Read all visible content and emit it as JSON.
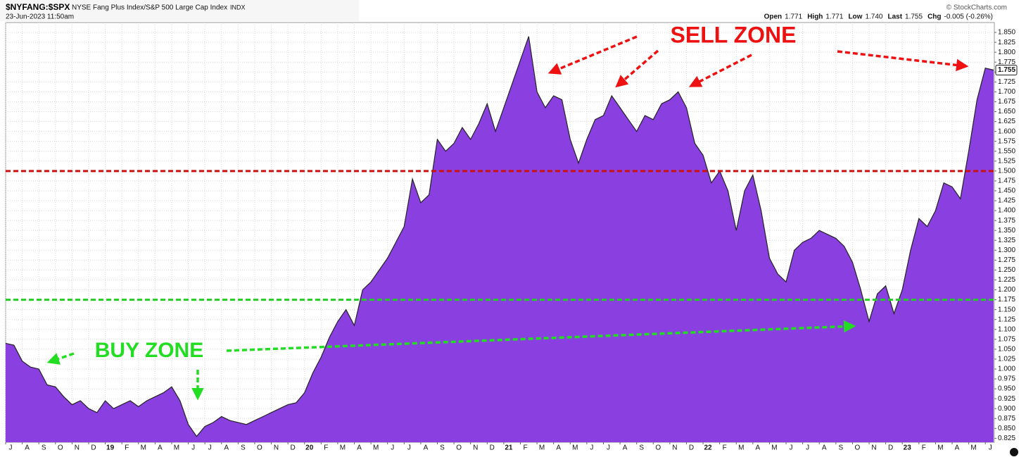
{
  "header": {
    "symbol": "$NYFANG:$SPX",
    "name": "NYSE Fang Plus Index/S&P 500 Large Cap Index",
    "exchange": "INDX",
    "date": "23-Jun-2023 11:50am",
    "copyright": "© StockCharts.com",
    "quote": [
      [
        "Open",
        "1.771"
      ],
      [
        "High",
        "1.771"
      ],
      [
        "Low",
        "1.740"
      ],
      [
        "Last",
        "1.755"
      ],
      [
        "Chg",
        "-0.005 (-0.26%)"
      ]
    ]
  },
  "chart_data": {
    "type": "area",
    "color": "#8a3fe0",
    "line_color": "#222222",
    "categories": [
      "J",
      null,
      "A",
      null,
      "S",
      null,
      "O",
      null,
      "N",
      null,
      "D",
      null,
      "19",
      null,
      "F",
      null,
      "M",
      null,
      "A",
      null,
      "M",
      null,
      "J",
      null,
      "J",
      null,
      "A",
      null,
      "S",
      null,
      "O",
      null,
      "N",
      null,
      "D",
      null,
      "20",
      null,
      "F",
      null,
      "M",
      null,
      "A",
      null,
      "M",
      null,
      "J",
      null,
      "J",
      null,
      "A",
      null,
      "S",
      null,
      "O",
      null,
      "N",
      null,
      "D",
      null,
      "21",
      null,
      "F",
      null,
      "M",
      null,
      "A",
      null,
      "M",
      null,
      "J",
      null,
      "J",
      null,
      "A",
      null,
      "S",
      null,
      "O",
      null,
      "N",
      null,
      "D",
      null,
      "22",
      null,
      "F",
      null,
      "M",
      null,
      "A",
      null,
      "M",
      null,
      "J",
      null,
      "J",
      null,
      "A",
      null,
      "S",
      null,
      "O",
      null,
      "N",
      null,
      "D",
      null,
      "23",
      null,
      "F",
      null,
      "M",
      null,
      "A",
      null,
      "M",
      null,
      "J",
      null
    ],
    "values": [
      1.065,
      1.06,
      1.02,
      1.005,
      1.0,
      0.96,
      0.955,
      0.93,
      0.91,
      0.92,
      0.9,
      0.89,
      0.92,
      0.9,
      0.91,
      0.92,
      0.905,
      0.92,
      0.93,
      0.94,
      0.955,
      0.92,
      0.86,
      0.83,
      0.855,
      0.865,
      0.88,
      0.87,
      0.865,
      0.86,
      0.87,
      0.88,
      0.89,
      0.9,
      0.91,
      0.915,
      0.94,
      0.99,
      1.03,
      1.08,
      1.12,
      1.15,
      1.11,
      1.2,
      1.22,
      1.25,
      1.28,
      1.32,
      1.36,
      1.48,
      1.42,
      1.44,
      1.58,
      1.55,
      1.57,
      1.61,
      1.58,
      1.62,
      1.67,
      1.6,
      1.66,
      1.72,
      1.78,
      1.84,
      1.7,
      1.66,
      1.69,
      1.68,
      1.58,
      1.52,
      1.58,
      1.63,
      1.64,
      1.69,
      1.66,
      1.63,
      1.6,
      1.64,
      1.63,
      1.67,
      1.68,
      1.7,
      1.66,
      1.57,
      1.54,
      1.47,
      1.5,
      1.45,
      1.35,
      1.45,
      1.49,
      1.4,
      1.28,
      1.24,
      1.22,
      1.3,
      1.32,
      1.33,
      1.35,
      1.34,
      1.33,
      1.31,
      1.27,
      1.2,
      1.12,
      1.19,
      1.21,
      1.14,
      1.2,
      1.3,
      1.38,
      1.36,
      1.4,
      1.47,
      1.46,
      1.43,
      1.55,
      1.68,
      1.76,
      1.755
    ],
    "ylim": [
      0.815,
      1.875
    ],
    "yticks": [
      0.825,
      {
        "value": 0.85,
        "label": "0.850"
      },
      0.875,
      {
        "value": 0.9,
        "label": "0.900"
      },
      0.925,
      {
        "value": 0.95,
        "label": "0.950"
      },
      0.975,
      {
        "value": 1.0,
        "label": "1.000"
      },
      1.025,
      {
        "value": 1.05,
        "label": "1.050"
      },
      1.075,
      {
        "value": 1.1,
        "label": "1.100"
      },
      1.125,
      {
        "value": 1.15,
        "label": "1.150"
      },
      1.175,
      {
        "value": 1.2,
        "label": "1.200"
      },
      1.225,
      {
        "value": 1.25,
        "label": "1.250"
      },
      1.275,
      {
        "value": 1.3,
        "label": "1.300"
      },
      1.325,
      {
        "value": 1.35,
        "label": "1.350"
      },
      1.375,
      {
        "value": 1.4,
        "label": "1.400"
      },
      1.425,
      {
        "value": 1.45,
        "label": "1.450"
      },
      1.475,
      {
        "value": 1.5,
        "label": "1.500"
      },
      1.525,
      {
        "value": 1.55,
        "label": "1.550"
      },
      1.575,
      {
        "value": 1.6,
        "label": "1.600"
      },
      1.625,
      {
        "value": 1.65,
        "label": "1.650"
      },
      1.675,
      {
        "value": 1.7,
        "label": "1.700"
      },
      1.725,
      {
        "value": 1.75,
        "label": "1.750"
      },
      1.775,
      {
        "value": 1.8,
        "label": "1.800"
      },
      1.825,
      {
        "value": 1.85,
        "label": "1.850"
      }
    ],
    "grid": true,
    "hlines": [
      {
        "value": 1.5,
        "color": "#cc1111"
      },
      {
        "value": 1.175,
        "color": "#22cc22"
      }
    ],
    "annotations": [
      {
        "text": "SELL ZONE",
        "color": "#ee1111"
      },
      {
        "text": "BUY ZONE",
        "color": "#22dd22"
      }
    ]
  }
}
